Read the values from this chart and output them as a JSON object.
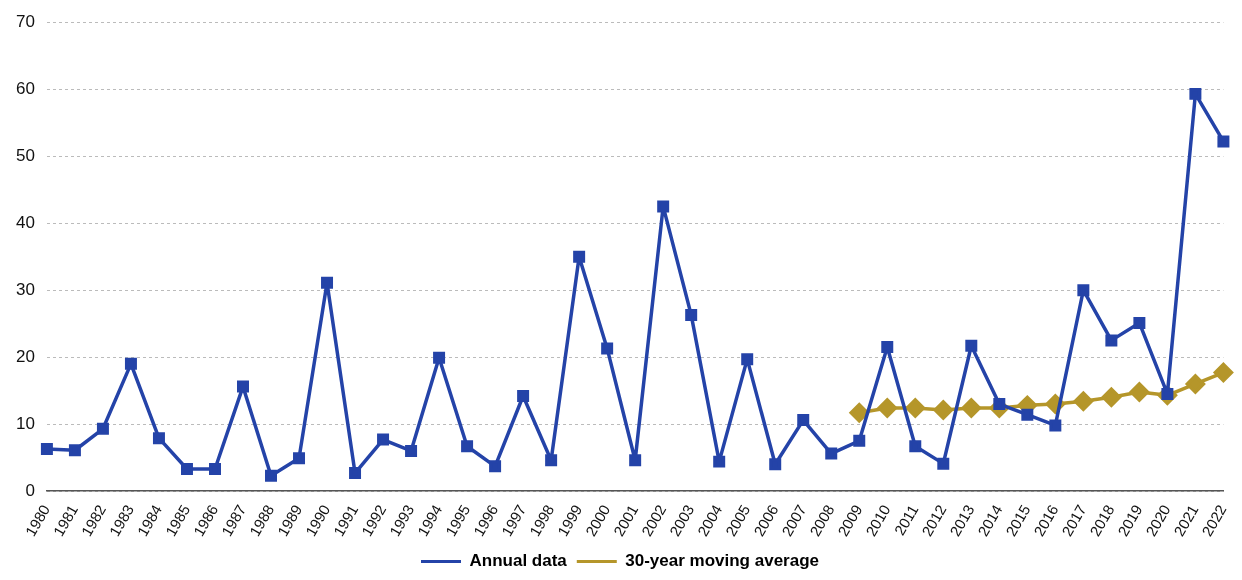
{
  "chart_data": {
    "type": "line",
    "categories": [
      "1980",
      "1981",
      "1982",
      "1983",
      "1984",
      "1985",
      "1986",
      "1987",
      "1988",
      "1989",
      "1990",
      "1991",
      "1992",
      "1993",
      "1994",
      "1995",
      "1996",
      "1997",
      "1998",
      "1999",
      "2000",
      "2001",
      "2002",
      "2003",
      "2004",
      "2005",
      "2006",
      "2007",
      "2008",
      "2009",
      "2010",
      "2011",
      "2012",
      "2013",
      "2014",
      "2015",
      "2016",
      "2017",
      "2018",
      "2019",
      "2020",
      "2021",
      "2022"
    ],
    "series": [
      {
        "name": "Annual data",
        "color": "#2443a8",
        "marker": "square",
        "values": [
          6.3,
          6.1,
          9.3,
          19,
          7.9,
          3.3,
          3.3,
          15.6,
          2.3,
          4.9,
          31.1,
          2.7,
          7.7,
          6.0,
          19.9,
          6.7,
          3.7,
          14.2,
          4.6,
          35,
          21.3,
          4.6,
          42.5,
          26.3,
          4.4,
          19.7,
          4.0,
          10.6,
          5.6,
          7.5,
          21.5,
          6.7,
          4.1,
          21.7,
          13,
          11.4,
          9.8,
          30,
          22.5,
          25.1,
          14.5,
          59.3,
          52.2
        ]
      },
      {
        "name": "30-year moving average",
        "color": "#b5962a",
        "marker": "diamond",
        "values": [
          null,
          null,
          null,
          null,
          null,
          null,
          null,
          null,
          null,
          null,
          null,
          null,
          null,
          null,
          null,
          null,
          null,
          null,
          null,
          null,
          null,
          null,
          null,
          null,
          null,
          null,
          null,
          null,
          null,
          11.7,
          12.4,
          12.4,
          12.1,
          12.4,
          12.4,
          12.8,
          13.0,
          13.4,
          14.0,
          14.8,
          14.3,
          16.0,
          17.7
        ]
      }
    ],
    "ylim": [
      0,
      70
    ],
    "yticks": [
      0,
      10,
      20,
      30,
      40,
      50,
      60,
      70
    ],
    "grid": "y",
    "legend": "bottom",
    "line_style": "solid"
  }
}
